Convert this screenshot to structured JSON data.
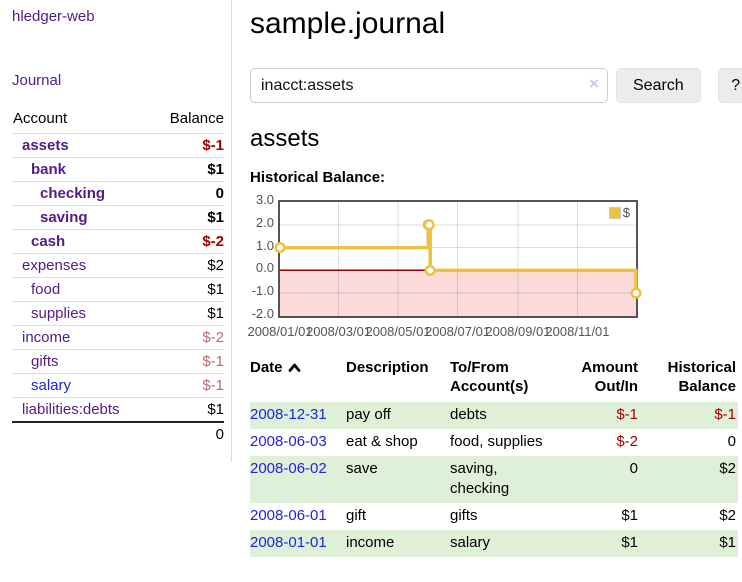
{
  "colors": {
    "link_purple": "#551a8b",
    "link_blue": "#2222dd",
    "negative_strong": "#a40000",
    "negative_soft": "#b96c6c",
    "register_row_green": "#dff0d8",
    "chart_series_gold": "#edc240",
    "chart_negative_fill": "#fcdada",
    "chart_zero_line": "#8b0000",
    "chart_border": "#545454"
  },
  "app": {
    "brand": "hledger-web",
    "nav_journal": "Journal"
  },
  "sidebar": {
    "header": {
      "account": "Account",
      "balance": "Balance"
    },
    "accounts": [
      {
        "name": "assets",
        "balance": "$-1",
        "indent": 1,
        "emphasis": true
      },
      {
        "name": "bank",
        "balance": "$1",
        "indent": 2,
        "emphasis": true
      },
      {
        "name": "checking",
        "balance": "0",
        "indent": 3,
        "emphasis": true
      },
      {
        "name": "saving",
        "balance": "$1",
        "indent": 3,
        "emphasis": true
      },
      {
        "name": "cash",
        "balance": "$-2",
        "indent": 2,
        "emphasis": true
      },
      {
        "name": "expenses",
        "balance": "$2",
        "indent": 1
      },
      {
        "name": "food",
        "balance": "$1",
        "indent": 2
      },
      {
        "name": "supplies",
        "balance": "$1",
        "indent": 2
      },
      {
        "name": "income",
        "balance": "$-2",
        "indent": 1
      },
      {
        "name": "gifts",
        "balance": "$-1",
        "indent": 2
      },
      {
        "name": "salary",
        "balance": "$-1",
        "indent": 2,
        "link_state": "unvisited"
      },
      {
        "name": "liabilities:debts",
        "balance": "$1",
        "indent": 1
      }
    ],
    "total": "0"
  },
  "header": {
    "title": "sample.journal"
  },
  "search": {
    "value": "inacct:assets",
    "clear_icon": "×",
    "button_label": "Search",
    "help_label": "?"
  },
  "account_page": {
    "title": "assets",
    "chart_heading": "Historical Balance:"
  },
  "chart_data": {
    "type": "line",
    "step": true,
    "title": "Historical Balance:",
    "series": [
      {
        "name": "$",
        "color": "#edc240",
        "points": [
          [
            "2008-01-01",
            1
          ],
          [
            "2008-06-01",
            2
          ],
          [
            "2008-06-02",
            2
          ],
          [
            "2008-06-03",
            0
          ],
          [
            "2008-12-31",
            -1
          ]
        ]
      }
    ],
    "xrange": [
      "2008-01-01",
      "2008-12-31"
    ],
    "ylim": [
      -2,
      3
    ],
    "yticks": [
      3.0,
      2.0,
      1.0,
      0.0,
      -1.0,
      -2.0
    ],
    "xticks": [
      "2008/01/01",
      "2008/03/01",
      "2008/05/01",
      "2008/07/01",
      "2008/09/01",
      "2008/11/01"
    ],
    "legend": {
      "position": "top-right",
      "label": "$"
    },
    "grid": true,
    "negative_region_fill": "#fcdada",
    "zero_line_color": "#8b0000"
  },
  "register": {
    "columns": [
      "Date",
      "Description",
      "To/From Account(s)",
      "Amount Out/In",
      "Historical Balance"
    ],
    "sort": {
      "column": "Date",
      "direction": "ascending"
    },
    "rows": [
      {
        "date": "2008-12-31",
        "description": "pay off",
        "accounts": "debts",
        "amount": "$-1",
        "balance": "$-1"
      },
      {
        "date": "2008-06-03",
        "description": "eat & shop",
        "accounts": "food, supplies",
        "amount": "$-2",
        "balance": "0"
      },
      {
        "date": "2008-06-02",
        "description": "save",
        "accounts": "saving, checking",
        "amount": "0",
        "balance": "$2"
      },
      {
        "date": "2008-06-01",
        "description": "gift",
        "accounts": "gifts",
        "amount": "$1",
        "balance": "$2"
      },
      {
        "date": "2008-01-01",
        "description": "income",
        "accounts": "salary",
        "amount": "$1",
        "balance": "$1"
      }
    ]
  }
}
